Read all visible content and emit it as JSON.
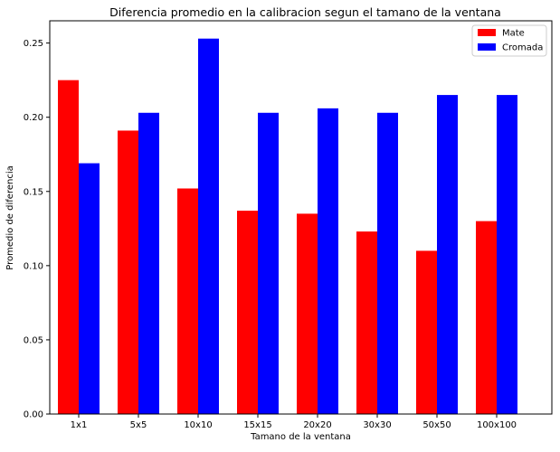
{
  "chart_data": {
    "type": "bar",
    "title": "Diferencia promedio en la calibracion segun el tamano de la ventana",
    "xlabel": "Tamano de la ventana",
    "ylabel": "Promedio de diferencia",
    "categories": [
      "1x1",
      "5x5",
      "10x10",
      "15x15",
      "20x20",
      "30x30",
      "50x50",
      "100x100"
    ],
    "series": [
      {
        "name": "Mate",
        "color": "#ff0000",
        "values": [
          0.225,
          0.191,
          0.152,
          0.137,
          0.135,
          0.123,
          0.11,
          0.13
        ]
      },
      {
        "name": "Cromada",
        "color": "#0000ff",
        "values": [
          0.169,
          0.203,
          0.253,
          0.203,
          0.206,
          0.203,
          0.215,
          0.215
        ]
      }
    ],
    "ylim": [
      0,
      0.265
    ],
    "yticks": [
      0.0,
      0.05,
      0.1,
      0.15,
      0.2,
      0.25
    ],
    "ytick_labels": [
      "0.00",
      "0.05",
      "0.10",
      "0.15",
      "0.20",
      "0.25"
    ],
    "grid": false,
    "legend_position": "top-right"
  }
}
